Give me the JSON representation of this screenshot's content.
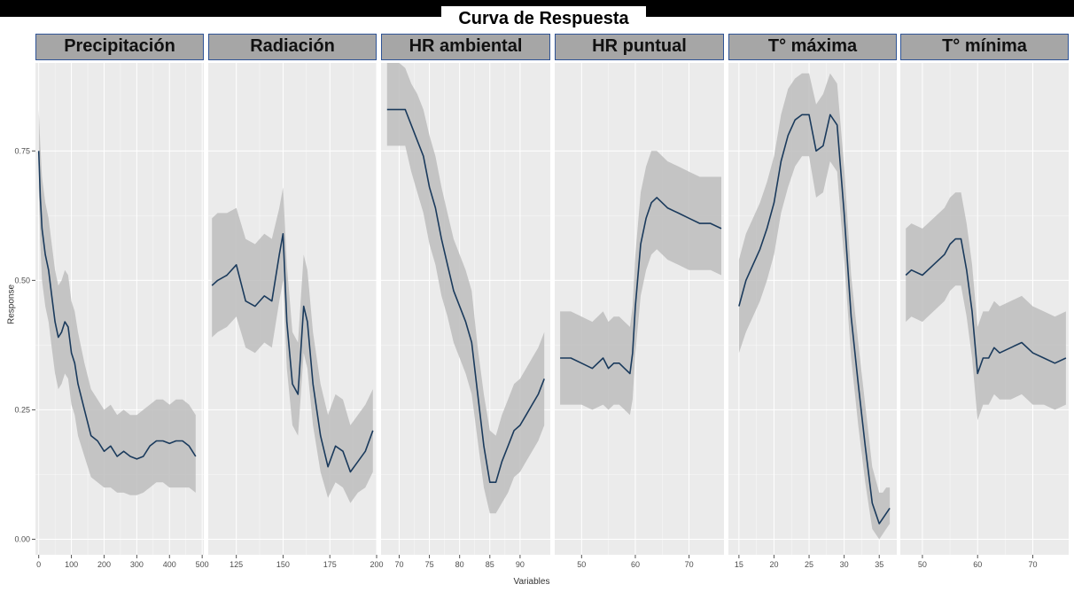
{
  "title": "Curva de Respuesta",
  "colors": {
    "panel_bg": "#ebebeb",
    "grid": "#ffffff",
    "ribbon": "#bdbdbd",
    "line": "#1a3a5c",
    "strip_bg": "#a6a6a6",
    "strip_border": "#2f5496"
  },
  "chart_data": {
    "type": "line",
    "title": "Curva de Respuesta",
    "xlabel": "Variables",
    "ylabel": "Response",
    "ylim": [
      -0.03,
      0.92
    ],
    "yticks": [
      0.0,
      0.25,
      0.5,
      0.75
    ],
    "ytick_labels": [
      "0.00",
      "0.25",
      "0.50",
      "0.75"
    ],
    "grid": true,
    "panels": [
      {
        "name": "Precipitación",
        "xlim": [
          -10,
          505
        ],
        "xticks": [
          0,
          100,
          200,
          300,
          400,
          500
        ],
        "x": [
          0,
          5,
          10,
          20,
          30,
          40,
          50,
          60,
          70,
          80,
          90,
          100,
          110,
          120,
          140,
          160,
          180,
          200,
          220,
          240,
          260,
          280,
          300,
          320,
          340,
          360,
          380,
          400,
          420,
          440,
          460,
          480
        ],
        "y": [
          0.75,
          0.66,
          0.6,
          0.55,
          0.52,
          0.47,
          0.42,
          0.39,
          0.4,
          0.42,
          0.41,
          0.36,
          0.34,
          0.3,
          0.25,
          0.2,
          0.19,
          0.17,
          0.18,
          0.16,
          0.17,
          0.16,
          0.155,
          0.16,
          0.18,
          0.19,
          0.19,
          0.185,
          0.19,
          0.19,
          0.18,
          0.16
        ],
        "lower": [
          0.68,
          0.57,
          0.5,
          0.45,
          0.42,
          0.37,
          0.32,
          0.29,
          0.3,
          0.32,
          0.31,
          0.26,
          0.24,
          0.2,
          0.16,
          0.12,
          0.11,
          0.1,
          0.1,
          0.09,
          0.09,
          0.085,
          0.085,
          0.09,
          0.1,
          0.11,
          0.11,
          0.1,
          0.1,
          0.1,
          0.1,
          0.09
        ],
        "upper": [
          0.83,
          0.76,
          0.7,
          0.65,
          0.62,
          0.57,
          0.52,
          0.49,
          0.5,
          0.52,
          0.51,
          0.46,
          0.44,
          0.4,
          0.34,
          0.29,
          0.27,
          0.25,
          0.26,
          0.24,
          0.25,
          0.24,
          0.24,
          0.25,
          0.26,
          0.27,
          0.27,
          0.26,
          0.27,
          0.27,
          0.26,
          0.24
        ]
      },
      {
        "name": "Radiación",
        "xlim": [
          110,
          200
        ],
        "xticks": [
          125,
          150,
          175,
          200
        ],
        "x": [
          112,
          115,
          120,
          125,
          130,
          135,
          140,
          144,
          148,
          150,
          152,
          155,
          158,
          161,
          163,
          166,
          170,
          174,
          178,
          182,
          186,
          190,
          194,
          198
        ],
        "y": [
          0.49,
          0.5,
          0.51,
          0.53,
          0.46,
          0.45,
          0.47,
          0.46,
          0.55,
          0.59,
          0.42,
          0.3,
          0.28,
          0.45,
          0.42,
          0.3,
          0.2,
          0.14,
          0.18,
          0.17,
          0.13,
          0.15,
          0.17,
          0.21
        ],
        "lower": [
          0.39,
          0.4,
          0.41,
          0.43,
          0.37,
          0.36,
          0.38,
          0.37,
          0.46,
          0.5,
          0.33,
          0.22,
          0.2,
          0.36,
          0.33,
          0.22,
          0.13,
          0.08,
          0.11,
          0.1,
          0.07,
          0.09,
          0.1,
          0.13
        ],
        "upper": [
          0.62,
          0.63,
          0.63,
          0.64,
          0.58,
          0.57,
          0.59,
          0.58,
          0.64,
          0.68,
          0.53,
          0.4,
          0.38,
          0.55,
          0.52,
          0.4,
          0.3,
          0.24,
          0.28,
          0.27,
          0.22,
          0.24,
          0.26,
          0.29
        ]
      },
      {
        "name": "HR ambiental",
        "xlim": [
          67,
          95
        ],
        "xticks": [
          70,
          75,
          80,
          85,
          90
        ],
        "x": [
          68,
          70,
          71,
          72,
          73,
          74,
          75,
          76,
          77,
          78,
          79,
          80,
          81,
          82,
          83,
          84,
          85,
          86,
          87,
          88,
          89,
          90,
          91,
          92,
          93,
          94
        ],
        "y": [
          0.83,
          0.83,
          0.83,
          0.8,
          0.77,
          0.74,
          0.68,
          0.64,
          0.58,
          0.53,
          0.48,
          0.45,
          0.42,
          0.38,
          0.28,
          0.18,
          0.11,
          0.11,
          0.15,
          0.18,
          0.21,
          0.22,
          0.24,
          0.26,
          0.28,
          0.31
        ],
        "lower": [
          0.76,
          0.76,
          0.76,
          0.71,
          0.67,
          0.63,
          0.57,
          0.53,
          0.47,
          0.43,
          0.38,
          0.35,
          0.32,
          0.28,
          0.19,
          0.1,
          0.05,
          0.05,
          0.07,
          0.09,
          0.12,
          0.13,
          0.15,
          0.17,
          0.19,
          0.22
        ],
        "upper": [
          0.92,
          0.92,
          0.91,
          0.88,
          0.86,
          0.83,
          0.78,
          0.74,
          0.68,
          0.63,
          0.58,
          0.55,
          0.52,
          0.48,
          0.37,
          0.28,
          0.21,
          0.2,
          0.24,
          0.27,
          0.3,
          0.31,
          0.33,
          0.35,
          0.37,
          0.4
        ]
      },
      {
        "name": "HR puntual",
        "xlim": [
          45,
          76.5
        ],
        "xticks": [
          50,
          60,
          70
        ],
        "x": [
          46,
          48,
          50,
          52,
          54,
          55,
          56,
          57,
          58,
          59,
          59.5,
          60,
          61,
          62,
          63,
          64,
          66,
          68,
          70,
          72,
          74,
          76
        ],
        "y": [
          0.35,
          0.35,
          0.34,
          0.33,
          0.35,
          0.33,
          0.34,
          0.34,
          0.33,
          0.32,
          0.36,
          0.45,
          0.57,
          0.62,
          0.65,
          0.66,
          0.64,
          0.63,
          0.62,
          0.61,
          0.61,
          0.6
        ],
        "lower": [
          0.26,
          0.26,
          0.26,
          0.25,
          0.26,
          0.25,
          0.26,
          0.26,
          0.25,
          0.24,
          0.27,
          0.36,
          0.47,
          0.52,
          0.55,
          0.56,
          0.54,
          0.53,
          0.52,
          0.52,
          0.52,
          0.51
        ],
        "upper": [
          0.44,
          0.44,
          0.43,
          0.42,
          0.44,
          0.42,
          0.43,
          0.43,
          0.42,
          0.41,
          0.45,
          0.55,
          0.67,
          0.72,
          0.75,
          0.75,
          0.73,
          0.72,
          0.71,
          0.7,
          0.7,
          0.7
        ]
      },
      {
        "name": "T° máxima",
        "xlim": [
          13.5,
          37.5
        ],
        "xticks": [
          15,
          20,
          25,
          30,
          35
        ],
        "x": [
          15,
          16,
          17,
          18,
          19,
          20,
          21,
          22,
          23,
          24,
          25,
          26,
          27,
          28,
          29,
          30,
          31,
          32,
          33,
          34,
          35,
          35.5,
          36,
          36.5
        ],
        "y": [
          0.45,
          0.5,
          0.53,
          0.56,
          0.6,
          0.65,
          0.73,
          0.78,
          0.81,
          0.82,
          0.82,
          0.75,
          0.76,
          0.82,
          0.8,
          0.63,
          0.43,
          0.3,
          0.18,
          0.07,
          0.03,
          0.04,
          0.05,
          0.06
        ],
        "lower": [
          0.36,
          0.4,
          0.43,
          0.46,
          0.5,
          0.55,
          0.63,
          0.68,
          0.72,
          0.74,
          0.74,
          0.66,
          0.67,
          0.73,
          0.71,
          0.54,
          0.35,
          0.22,
          0.11,
          0.02,
          0.0,
          0.01,
          0.02,
          0.03
        ],
        "upper": [
          0.54,
          0.59,
          0.62,
          0.65,
          0.69,
          0.74,
          0.82,
          0.87,
          0.89,
          0.9,
          0.9,
          0.84,
          0.86,
          0.9,
          0.88,
          0.72,
          0.51,
          0.38,
          0.26,
          0.14,
          0.09,
          0.09,
          0.1,
          0.1
        ]
      },
      {
        "name": "T° mínima",
        "xlim": [
          46,
          76.5
        ],
        "xticks": [
          50,
          60,
          70
        ],
        "x": [
          47,
          48,
          50,
          52,
          54,
          55,
          56,
          57,
          58,
          59,
          60,
          61,
          62,
          63,
          64,
          66,
          68,
          70,
          72,
          74,
          76
        ],
        "y": [
          0.51,
          0.52,
          0.51,
          0.53,
          0.55,
          0.57,
          0.58,
          0.58,
          0.52,
          0.44,
          0.32,
          0.35,
          0.35,
          0.37,
          0.36,
          0.37,
          0.38,
          0.36,
          0.35,
          0.34,
          0.35
        ],
        "lower": [
          0.42,
          0.43,
          0.42,
          0.44,
          0.46,
          0.48,
          0.49,
          0.49,
          0.43,
          0.35,
          0.23,
          0.26,
          0.26,
          0.28,
          0.27,
          0.27,
          0.28,
          0.26,
          0.26,
          0.25,
          0.26
        ],
        "upper": [
          0.6,
          0.61,
          0.6,
          0.62,
          0.64,
          0.66,
          0.67,
          0.67,
          0.61,
          0.53,
          0.41,
          0.44,
          0.44,
          0.46,
          0.45,
          0.46,
          0.47,
          0.45,
          0.44,
          0.43,
          0.44
        ]
      }
    ]
  }
}
